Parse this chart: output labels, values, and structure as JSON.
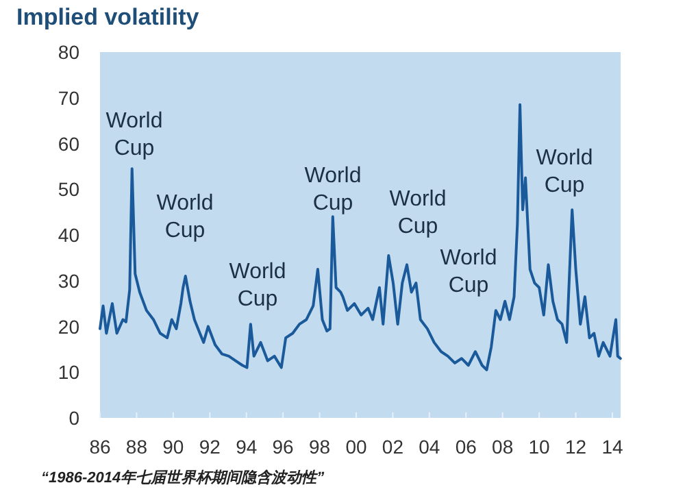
{
  "chart_data": {
    "type": "line",
    "title": "Implied volatility",
    "annotations": [
      "World Cup",
      "World Cup",
      "World Cup",
      "World Cup",
      "World Cup",
      "World Cup",
      "World Cup",
      "“1986-2014年七届世界杯期间隐含波动性”"
    ],
    "x": [
      1986.0,
      1986.17,
      1986.35,
      1986.67,
      1986.92,
      1987.25,
      1987.42,
      1987.62,
      1987.75,
      1987.92,
      1988.17,
      1988.54,
      1988.92,
      1989.29,
      1989.67,
      1989.92,
      1990.17,
      1990.42,
      1990.54,
      1990.67,
      1990.92,
      1991.16,
      1991.41,
      1991.66,
      1991.91,
      1992.29,
      1992.66,
      1993.04,
      1993.41,
      1993.78,
      1994.03,
      1994.23,
      1994.41,
      1994.78,
      1995.16,
      1995.53,
      1995.91,
      1996.15,
      1996.53,
      1996.9,
      1997.28,
      1997.65,
      1997.9,
      1998.15,
      1998.4,
      1998.57,
      1998.72,
      1998.9,
      1999.15,
      1999.27,
      1999.52,
      1999.9,
      2000.27,
      2000.65,
      2000.9,
      2001.27,
      2001.47,
      2001.77,
      2002.02,
      2002.27,
      2002.52,
      2002.77,
      2003.02,
      2003.27,
      2003.51,
      2003.89,
      2004.26,
      2004.64,
      2005.01,
      2005.39,
      2005.76,
      2006.13,
      2006.51,
      2006.88,
      2007.13,
      2007.38,
      2007.63,
      2007.88,
      2008.13,
      2008.38,
      2008.63,
      2008.81,
      2008.95,
      2009.1,
      2009.25,
      2009.5,
      2009.75,
      2010.0,
      2010.25,
      2010.5,
      2010.75,
      2011.0,
      2011.25,
      2011.5,
      2011.8,
      2012.0,
      2012.25,
      2012.5,
      2012.75,
      2013.0,
      2013.25,
      2013.5,
      2013.87,
      2014.19,
      2014.29,
      2014.44
    ],
    "values": [
      19.5,
      24.5,
      18.5,
      25,
      18.5,
      21.5,
      21,
      28,
      54.5,
      31.5,
      27.5,
      23.5,
      21.5,
      18.5,
      17.5,
      21.5,
      19.5,
      25,
      28.5,
      31,
      25.5,
      21.5,
      19,
      16.5,
      20,
      16,
      14,
      13.5,
      12.5,
      11.5,
      11,
      20.5,
      13.5,
      16.5,
      12.5,
      13.5,
      11,
      17.5,
      18.5,
      20.5,
      21.5,
      24.5,
      32.5,
      21.5,
      19,
      19.5,
      44,
      28.5,
      27.5,
      26.5,
      23.5,
      25,
      22.5,
      24,
      21.5,
      28.5,
      20.5,
      35.5,
      29.5,
      20.5,
      29.5,
      33.5,
      27.5,
      29.5,
      21.5,
      19.5,
      16.5,
      14.5,
      13.5,
      12,
      13,
      11.5,
      14.5,
      11.5,
      10.5,
      15.5,
      23.5,
      21.5,
      25.5,
      21.5,
      26.5,
      42.5,
      68.5,
      45.5,
      52.5,
      32.5,
      29.5,
      28.5,
      22.5,
      33.5,
      25.5,
      21.5,
      20.5,
      16.5,
      45.5,
      32.5,
      20.5,
      26.5,
      17.5,
      18.5,
      13.5,
      16.5,
      13.5,
      21.5,
      13.5,
      13
    ],
    "color": "#1a5a9a",
    "xlim": [
      1986,
      2014.45
    ],
    "ylim": [
      0,
      80
    ],
    "xticks": [
      {
        "value": 1986,
        "label": "86"
      },
      {
        "value": 1988,
        "label": "88"
      },
      {
        "value": 1990,
        "label": "90"
      },
      {
        "value": 1992,
        "label": "92"
      },
      {
        "value": 1994,
        "label": "94"
      },
      {
        "value": 1996,
        "label": "96"
      },
      {
        "value": 1998,
        "label": "98"
      },
      {
        "value": 2000,
        "label": "00"
      },
      {
        "value": 2002,
        "label": "02"
      },
      {
        "value": 2004,
        "label": "04"
      },
      {
        "value": 2006,
        "label": "06"
      },
      {
        "value": 2008,
        "label": "08"
      },
      {
        "value": 2010,
        "label": "10"
      },
      {
        "value": 2012,
        "label": "12"
      },
      {
        "value": 2014,
        "label": "14"
      }
    ],
    "yticks": [
      0,
      10,
      20,
      30,
      40,
      50,
      60,
      70,
      80
    ]
  }
}
